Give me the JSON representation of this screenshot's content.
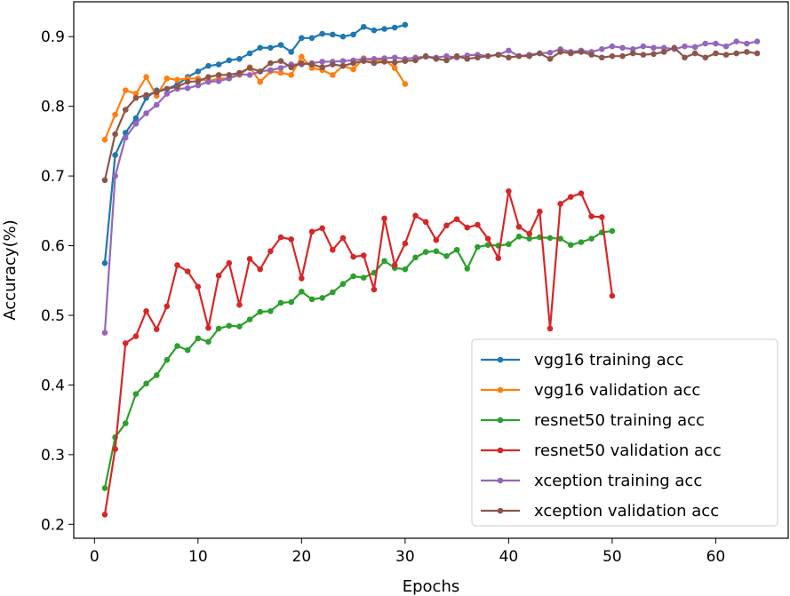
{
  "chart_data": {
    "type": "line",
    "title": "",
    "xlabel": "Epochs",
    "ylabel": "Accuracy(%)",
    "xlim": [
      -2,
      67
    ],
    "ylim": [
      0.18,
      0.95
    ],
    "xticks": [
      0,
      10,
      20,
      30,
      40,
      50,
      60
    ],
    "yticks": [
      0.2,
      0.3,
      0.4,
      0.5,
      0.6,
      0.7,
      0.8,
      0.9
    ],
    "legend_position": "lower-right",
    "grid": false,
    "series": [
      {
        "name": "vgg16 training acc",
        "color": "#1f77b4",
        "x": [
          1,
          2,
          3,
          4,
          5,
          6,
          7,
          8,
          9,
          10,
          11,
          12,
          13,
          14,
          15,
          16,
          17,
          18,
          19,
          20,
          21,
          22,
          23,
          24,
          25,
          26,
          27,
          28,
          29,
          30
        ],
        "y": [
          0.575,
          0.73,
          0.762,
          0.783,
          0.812,
          0.823,
          0.825,
          0.831,
          0.842,
          0.85,
          0.858,
          0.86,
          0.866,
          0.868,
          0.876,
          0.884,
          0.884,
          0.888,
          0.878,
          0.898,
          0.898,
          0.904,
          0.903,
          0.9,
          0.903,
          0.914,
          0.909,
          0.911,
          0.913,
          0.917
        ]
      },
      {
        "name": "vgg16 validation acc",
        "color": "#ff7f0e",
        "x": [
          1,
          2,
          3,
          4,
          5,
          6,
          7,
          8,
          9,
          10,
          11,
          12,
          13,
          14,
          15,
          16,
          17,
          18,
          19,
          20,
          21,
          22,
          23,
          24,
          25,
          26,
          27,
          28,
          29,
          30
        ],
        "y": [
          0.752,
          0.788,
          0.823,
          0.818,
          0.842,
          0.815,
          0.84,
          0.838,
          0.84,
          0.84,
          0.836,
          0.84,
          0.84,
          0.845,
          0.856,
          0.835,
          0.85,
          0.848,
          0.845,
          0.871,
          0.855,
          0.852,
          0.845,
          0.858,
          0.853,
          0.869,
          0.865,
          0.867,
          0.855,
          0.832
        ]
      },
      {
        "name": "resnet50 training acc",
        "color": "#2ca02c",
        "x": [
          1,
          2,
          3,
          4,
          5,
          6,
          7,
          8,
          9,
          10,
          11,
          12,
          13,
          14,
          15,
          16,
          17,
          18,
          19,
          20,
          21,
          22,
          23,
          24,
          25,
          26,
          27,
          28,
          29,
          30,
          31,
          32,
          33,
          34,
          35,
          36,
          37,
          38,
          39,
          40,
          41,
          42,
          43,
          44,
          45,
          46,
          47,
          48,
          49,
          50
        ],
        "y": [
          0.252,
          0.325,
          0.345,
          0.387,
          0.402,
          0.414,
          0.436,
          0.456,
          0.45,
          0.467,
          0.462,
          0.481,
          0.485,
          0.484,
          0.494,
          0.505,
          0.506,
          0.518,
          0.519,
          0.534,
          0.523,
          0.525,
          0.533,
          0.545,
          0.556,
          0.554,
          0.561,
          0.578,
          0.568,
          0.566,
          0.583,
          0.591,
          0.592,
          0.585,
          0.594,
          0.567,
          0.598,
          0.601,
          0.6,
          0.602,
          0.613,
          0.61,
          0.612,
          0.611,
          0.61,
          0.601,
          0.605,
          0.61,
          0.619,
          0.621
        ]
      },
      {
        "name": "resnet50 validation acc",
        "color": "#d62728",
        "x": [
          1,
          2,
          3,
          4,
          5,
          6,
          7,
          8,
          9,
          10,
          11,
          12,
          13,
          14,
          15,
          16,
          17,
          18,
          19,
          20,
          21,
          22,
          23,
          24,
          25,
          26,
          27,
          28,
          29,
          30,
          31,
          32,
          33,
          34,
          35,
          36,
          37,
          38,
          39,
          40,
          41,
          42,
          43,
          44,
          45,
          46,
          47,
          48,
          49,
          50
        ],
        "y": [
          0.214,
          0.308,
          0.46,
          0.47,
          0.506,
          0.48,
          0.513,
          0.572,
          0.563,
          0.541,
          0.482,
          0.557,
          0.575,
          0.515,
          0.581,
          0.566,
          0.592,
          0.612,
          0.609,
          0.553,
          0.62,
          0.625,
          0.594,
          0.611,
          0.584,
          0.586,
          0.537,
          0.639,
          0.572,
          0.603,
          0.643,
          0.634,
          0.608,
          0.629,
          0.638,
          0.626,
          0.63,
          0.61,
          0.582,
          0.678,
          0.627,
          0.617,
          0.649,
          0.481,
          0.66,
          0.67,
          0.675,
          0.642,
          0.641,
          0.528
        ]
      },
      {
        "name": "xception training acc",
        "color": "#9467bd",
        "x": [
          1,
          2,
          3,
          4,
          5,
          6,
          7,
          8,
          9,
          10,
          11,
          12,
          13,
          14,
          15,
          16,
          17,
          18,
          19,
          20,
          21,
          22,
          23,
          24,
          25,
          26,
          27,
          28,
          29,
          30,
          31,
          32,
          33,
          34,
          35,
          36,
          37,
          38,
          39,
          40,
          41,
          42,
          43,
          44,
          45,
          46,
          47,
          48,
          49,
          50,
          51,
          52,
          53,
          54,
          55,
          56,
          57,
          58,
          59,
          60,
          61,
          62,
          63,
          64
        ],
        "y": [
          0.475,
          0.7,
          0.755,
          0.775,
          0.79,
          0.802,
          0.818,
          0.825,
          0.826,
          0.83,
          0.835,
          0.836,
          0.84,
          0.846,
          0.845,
          0.85,
          0.852,
          0.855,
          0.86,
          0.86,
          0.862,
          0.864,
          0.864,
          0.865,
          0.866,
          0.868,
          0.868,
          0.869,
          0.87,
          0.868,
          0.87,
          0.871,
          0.87,
          0.872,
          0.87,
          0.873,
          0.874,
          0.872,
          0.874,
          0.88,
          0.872,
          0.874,
          0.876,
          0.877,
          0.882,
          0.878,
          0.88,
          0.878,
          0.882,
          0.886,
          0.884,
          0.882,
          0.886,
          0.884,
          0.884,
          0.882,
          0.886,
          0.885,
          0.89,
          0.89,
          0.886,
          0.893,
          0.89,
          0.893
        ]
      },
      {
        "name": "xception validation acc",
        "color": "#8c564b",
        "x": [
          1,
          2,
          3,
          4,
          5,
          6,
          7,
          8,
          9,
          10,
          11,
          12,
          13,
          14,
          15,
          16,
          17,
          18,
          19,
          20,
          21,
          22,
          23,
          24,
          25,
          26,
          27,
          28,
          29,
          30,
          31,
          32,
          33,
          34,
          35,
          36,
          37,
          38,
          39,
          40,
          41,
          42,
          43,
          44,
          45,
          46,
          47,
          48,
          49,
          50,
          51,
          52,
          53,
          54,
          55,
          56,
          57,
          58,
          59,
          60,
          61,
          62,
          63,
          64
        ],
        "y": [
          0.694,
          0.76,
          0.795,
          0.812,
          0.816,
          0.82,
          0.825,
          0.828,
          0.835,
          0.836,
          0.842,
          0.845,
          0.845,
          0.848,
          0.855,
          0.85,
          0.862,
          0.865,
          0.856,
          0.862,
          0.86,
          0.856,
          0.86,
          0.858,
          0.862,
          0.865,
          0.862,
          0.864,
          0.863,
          0.865,
          0.866,
          0.872,
          0.868,
          0.866,
          0.872,
          0.868,
          0.87,
          0.872,
          0.874,
          0.87,
          0.872,
          0.872,
          0.876,
          0.868,
          0.878,
          0.876,
          0.878,
          0.874,
          0.87,
          0.872,
          0.872,
          0.876,
          0.874,
          0.875,
          0.878,
          0.884,
          0.87,
          0.876,
          0.87,
          0.876,
          0.874,
          0.876,
          0.878,
          0.876
        ]
      }
    ]
  }
}
